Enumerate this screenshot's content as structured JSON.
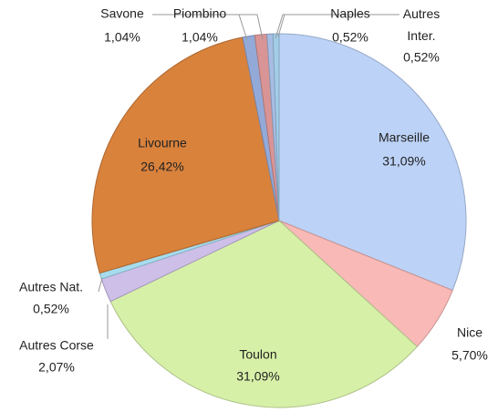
{
  "chart_data": {
    "type": "pie",
    "categories": [
      "Marseille",
      "Nice",
      "Toulon",
      "Autres Corse",
      "Autres Nat.",
      "Livourne",
      "Savone",
      "Piombino",
      "Naples",
      "Autres Inter."
    ],
    "values": [
      31.09,
      5.7,
      31.09,
      2.07,
      0.52,
      26.42,
      1.04,
      1.04,
      0.52,
      0.52
    ],
    "value_labels": [
      "31,09%",
      "5,70%",
      "31,09%",
      "2,07%",
      "0,52%",
      "26,42%",
      "1,04%",
      "1,04%",
      "0,52%",
      "0,52%"
    ],
    "colors": [
      "#bcd2f7",
      "#f9b9b7",
      "#d7f0a8",
      "#cdbfe8",
      "#a6dcee",
      "#d9823c",
      "#93aad9",
      "#d99595",
      "#a7bde3",
      "#a3cde9"
    ]
  }
}
